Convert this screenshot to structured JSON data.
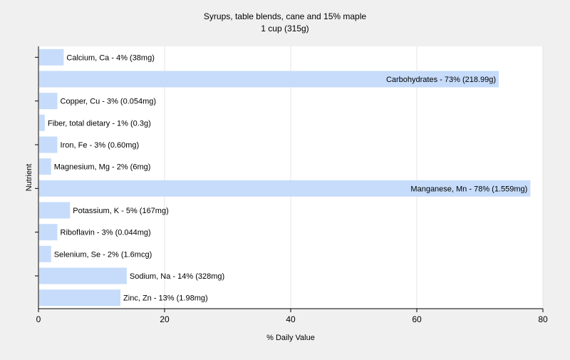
{
  "chart_data": {
    "type": "bar",
    "orientation": "horizontal",
    "title": "Syrups, table blends, cane and 15% maple",
    "subtitle": "1 cup (315g)",
    "xlabel": "% Daily Value",
    "ylabel": "Nutrient",
    "xlim": [
      0,
      80
    ],
    "xticks": [
      0,
      20,
      40,
      60,
      80
    ],
    "grid": true,
    "legend": "none",
    "colors": {
      "bar": "#c6dcfa",
      "plot_bg": "#ffffff",
      "page_bg": "#f0f0f0",
      "grid": "#e6e6e6"
    },
    "categories": [
      "Calcium, Ca",
      "Carbohydrates",
      "Copper, Cu",
      "Fiber, total dietary",
      "Iron, Fe",
      "Magnesium, Mg",
      "Manganese, Mn",
      "Potassium, K",
      "Riboflavin",
      "Selenium, Se",
      "Sodium, Na",
      "Zinc, Zn"
    ],
    "values": [
      4,
      73,
      3,
      1,
      3,
      2,
      78,
      5,
      3,
      2,
      14,
      13
    ],
    "labels": [
      "Calcium, Ca - 4% (38mg)",
      "Carbohydrates - 73% (218.99g)",
      "Copper, Cu - 3% (0.054mg)",
      "Fiber, total dietary - 1% (0.3g)",
      "Iron, Fe - 3% (0.60mg)",
      "Magnesium, Mg - 2% (6mg)",
      "Manganese, Mn - 78% (1.559mg)",
      "Potassium, K - 5% (167mg)",
      "Riboflavin - 3% (0.044mg)",
      "Selenium, Se - 2% (1.6mcg)",
      "Sodium, Na - 14% (328mg)",
      "Zinc, Zn - 13% (1.98mg)"
    ]
  }
}
